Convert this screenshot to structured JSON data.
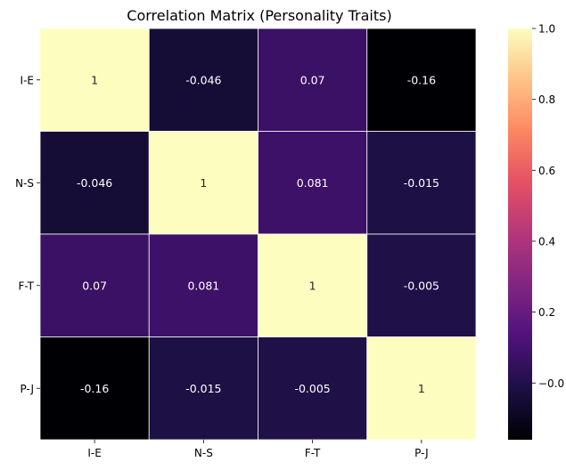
{
  "chart_data": {
    "type": "heatmap",
    "title": "Correlation Matrix (Personality Traits)",
    "xlabel": "",
    "ylabel": "",
    "x_categories": [
      "I-E",
      "N-S",
      "F-T",
      "P-J"
    ],
    "y_categories": [
      "I-E",
      "N-S",
      "F-T",
      "P-J"
    ],
    "matrix": [
      [
        1,
        -0.046,
        0.07,
        -0.16
      ],
      [
        -0.046,
        1,
        0.081,
        -0.015
      ],
      [
        0.07,
        0.081,
        1,
        -0.005
      ],
      [
        -0.16,
        -0.015,
        -0.005,
        1
      ]
    ],
    "cell_labels": [
      [
        "1",
        "-0.046",
        "0.07",
        "-0.16"
      ],
      [
        "-0.046",
        "1",
        "0.081",
        "-0.015"
      ],
      [
        "0.07",
        "0.081",
        "1",
        "-0.005"
      ],
      [
        "-0.16",
        "-0.015",
        "-0.005",
        "1"
      ]
    ],
    "colormap": "magma",
    "vmin": -0.16,
    "vmax": 1,
    "colorbar_ticks": [
      -0.0,
      0.2,
      0.4,
      0.6,
      0.8,
      1.0
    ],
    "colorbar_tick_labels": [
      "−0.0",
      "0.2",
      "0.4",
      "0.6",
      "0.8",
      "1.0"
    ],
    "grid_line_color": "#ffffff",
    "legend_position": "right"
  }
}
